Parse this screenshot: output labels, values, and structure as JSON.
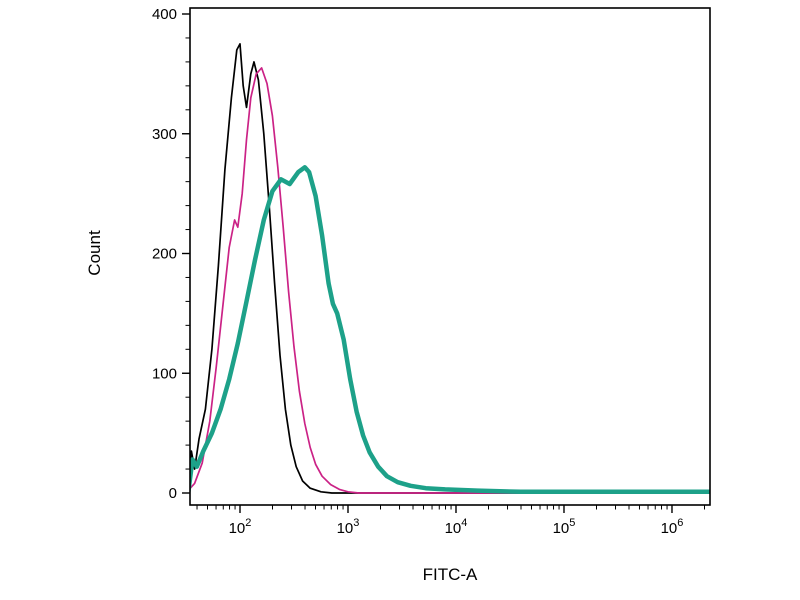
{
  "chart_data": {
    "type": "line",
    "title": "",
    "xlabel": "FITC-A",
    "ylabel": "Count",
    "x_scale": "log",
    "xlim_log": [
      1.537,
      6.352
    ],
    "ylim": [
      0,
      400
    ],
    "grid": false,
    "legend": "none",
    "y_ticks": [
      {
        "label": "0",
        "value": 0
      },
      {
        "label": "100",
        "value": 100
      },
      {
        "label": "200",
        "value": 200
      },
      {
        "label": "300",
        "value": 300
      },
      {
        "label": "400",
        "value": 400
      }
    ],
    "y_minor_step": 20,
    "x_ticks": [
      {
        "base": "10",
        "exp": "2",
        "log": 2
      },
      {
        "base": "10",
        "exp": "3",
        "log": 3
      },
      {
        "base": "10",
        "exp": "4",
        "log": 4
      },
      {
        "base": "10",
        "exp": "5",
        "log": 5
      },
      {
        "base": "10",
        "exp": "6",
        "log": 6
      }
    ],
    "series": [
      {
        "name": "black-curve",
        "color": "#000000",
        "stroke_width": 1.7,
        "points": [
          [
            1.5,
            0
          ],
          [
            1.55,
            35
          ],
          [
            1.58,
            20
          ],
          [
            1.62,
            45
          ],
          [
            1.68,
            70
          ],
          [
            1.74,
            120
          ],
          [
            1.8,
            190
          ],
          [
            1.86,
            270
          ],
          [
            1.92,
            330
          ],
          [
            1.97,
            370
          ],
          [
            2.0,
            375
          ],
          [
            2.03,
            340
          ],
          [
            2.06,
            322
          ],
          [
            2.1,
            350
          ],
          [
            2.13,
            360
          ],
          [
            2.17,
            345
          ],
          [
            2.22,
            300
          ],
          [
            2.27,
            240
          ],
          [
            2.32,
            175
          ],
          [
            2.37,
            115
          ],
          [
            2.42,
            70
          ],
          [
            2.47,
            40
          ],
          [
            2.52,
            22
          ],
          [
            2.58,
            10
          ],
          [
            2.65,
            4
          ],
          [
            2.75,
            1
          ],
          [
            2.85,
            0
          ],
          [
            6.35,
            0
          ]
        ]
      },
      {
        "name": "magenta-curve",
        "color": "#cb2286",
        "stroke_width": 1.7,
        "points": [
          [
            1.5,
            0
          ],
          [
            1.58,
            8
          ],
          [
            1.65,
            25
          ],
          [
            1.72,
            60
          ],
          [
            1.78,
            105
          ],
          [
            1.84,
            155
          ],
          [
            1.9,
            205
          ],
          [
            1.95,
            228
          ],
          [
            1.98,
            222
          ],
          [
            2.02,
            250
          ],
          [
            2.06,
            295
          ],
          [
            2.1,
            330
          ],
          [
            2.15,
            350
          ],
          [
            2.2,
            355
          ],
          [
            2.25,
            342
          ],
          [
            2.3,
            315
          ],
          [
            2.35,
            272
          ],
          [
            2.4,
            222
          ],
          [
            2.45,
            168
          ],
          [
            2.5,
            122
          ],
          [
            2.55,
            85
          ],
          [
            2.6,
            58
          ],
          [
            2.65,
            38
          ],
          [
            2.7,
            24
          ],
          [
            2.76,
            14
          ],
          [
            2.84,
            7
          ],
          [
            2.92,
            3
          ],
          [
            3.0,
            1
          ],
          [
            3.1,
            0
          ],
          [
            6.35,
            0
          ]
        ]
      },
      {
        "name": "teal-curve",
        "color": "#1da189",
        "stroke_width": 4.5,
        "points": [
          [
            1.52,
            0
          ],
          [
            1.56,
            28
          ],
          [
            1.6,
            22
          ],
          [
            1.66,
            35
          ],
          [
            1.74,
            50
          ],
          [
            1.82,
            70
          ],
          [
            1.9,
            95
          ],
          [
            1.98,
            125
          ],
          [
            2.06,
            160
          ],
          [
            2.14,
            195
          ],
          [
            2.22,
            228
          ],
          [
            2.3,
            252
          ],
          [
            2.38,
            262
          ],
          [
            2.46,
            258
          ],
          [
            2.54,
            268
          ],
          [
            2.6,
            272
          ],
          [
            2.64,
            268
          ],
          [
            2.7,
            248
          ],
          [
            2.76,
            215
          ],
          [
            2.82,
            175
          ],
          [
            2.86,
            158
          ],
          [
            2.9,
            150
          ],
          [
            2.96,
            128
          ],
          [
            3.02,
            95
          ],
          [
            3.08,
            68
          ],
          [
            3.14,
            48
          ],
          [
            3.2,
            34
          ],
          [
            3.28,
            22
          ],
          [
            3.36,
            14
          ],
          [
            3.46,
            9
          ],
          [
            3.58,
            6
          ],
          [
            3.72,
            4
          ],
          [
            3.9,
            3
          ],
          [
            4.2,
            2
          ],
          [
            4.6,
            1
          ],
          [
            5.2,
            1
          ],
          [
            6.35,
            1
          ]
        ]
      }
    ]
  }
}
